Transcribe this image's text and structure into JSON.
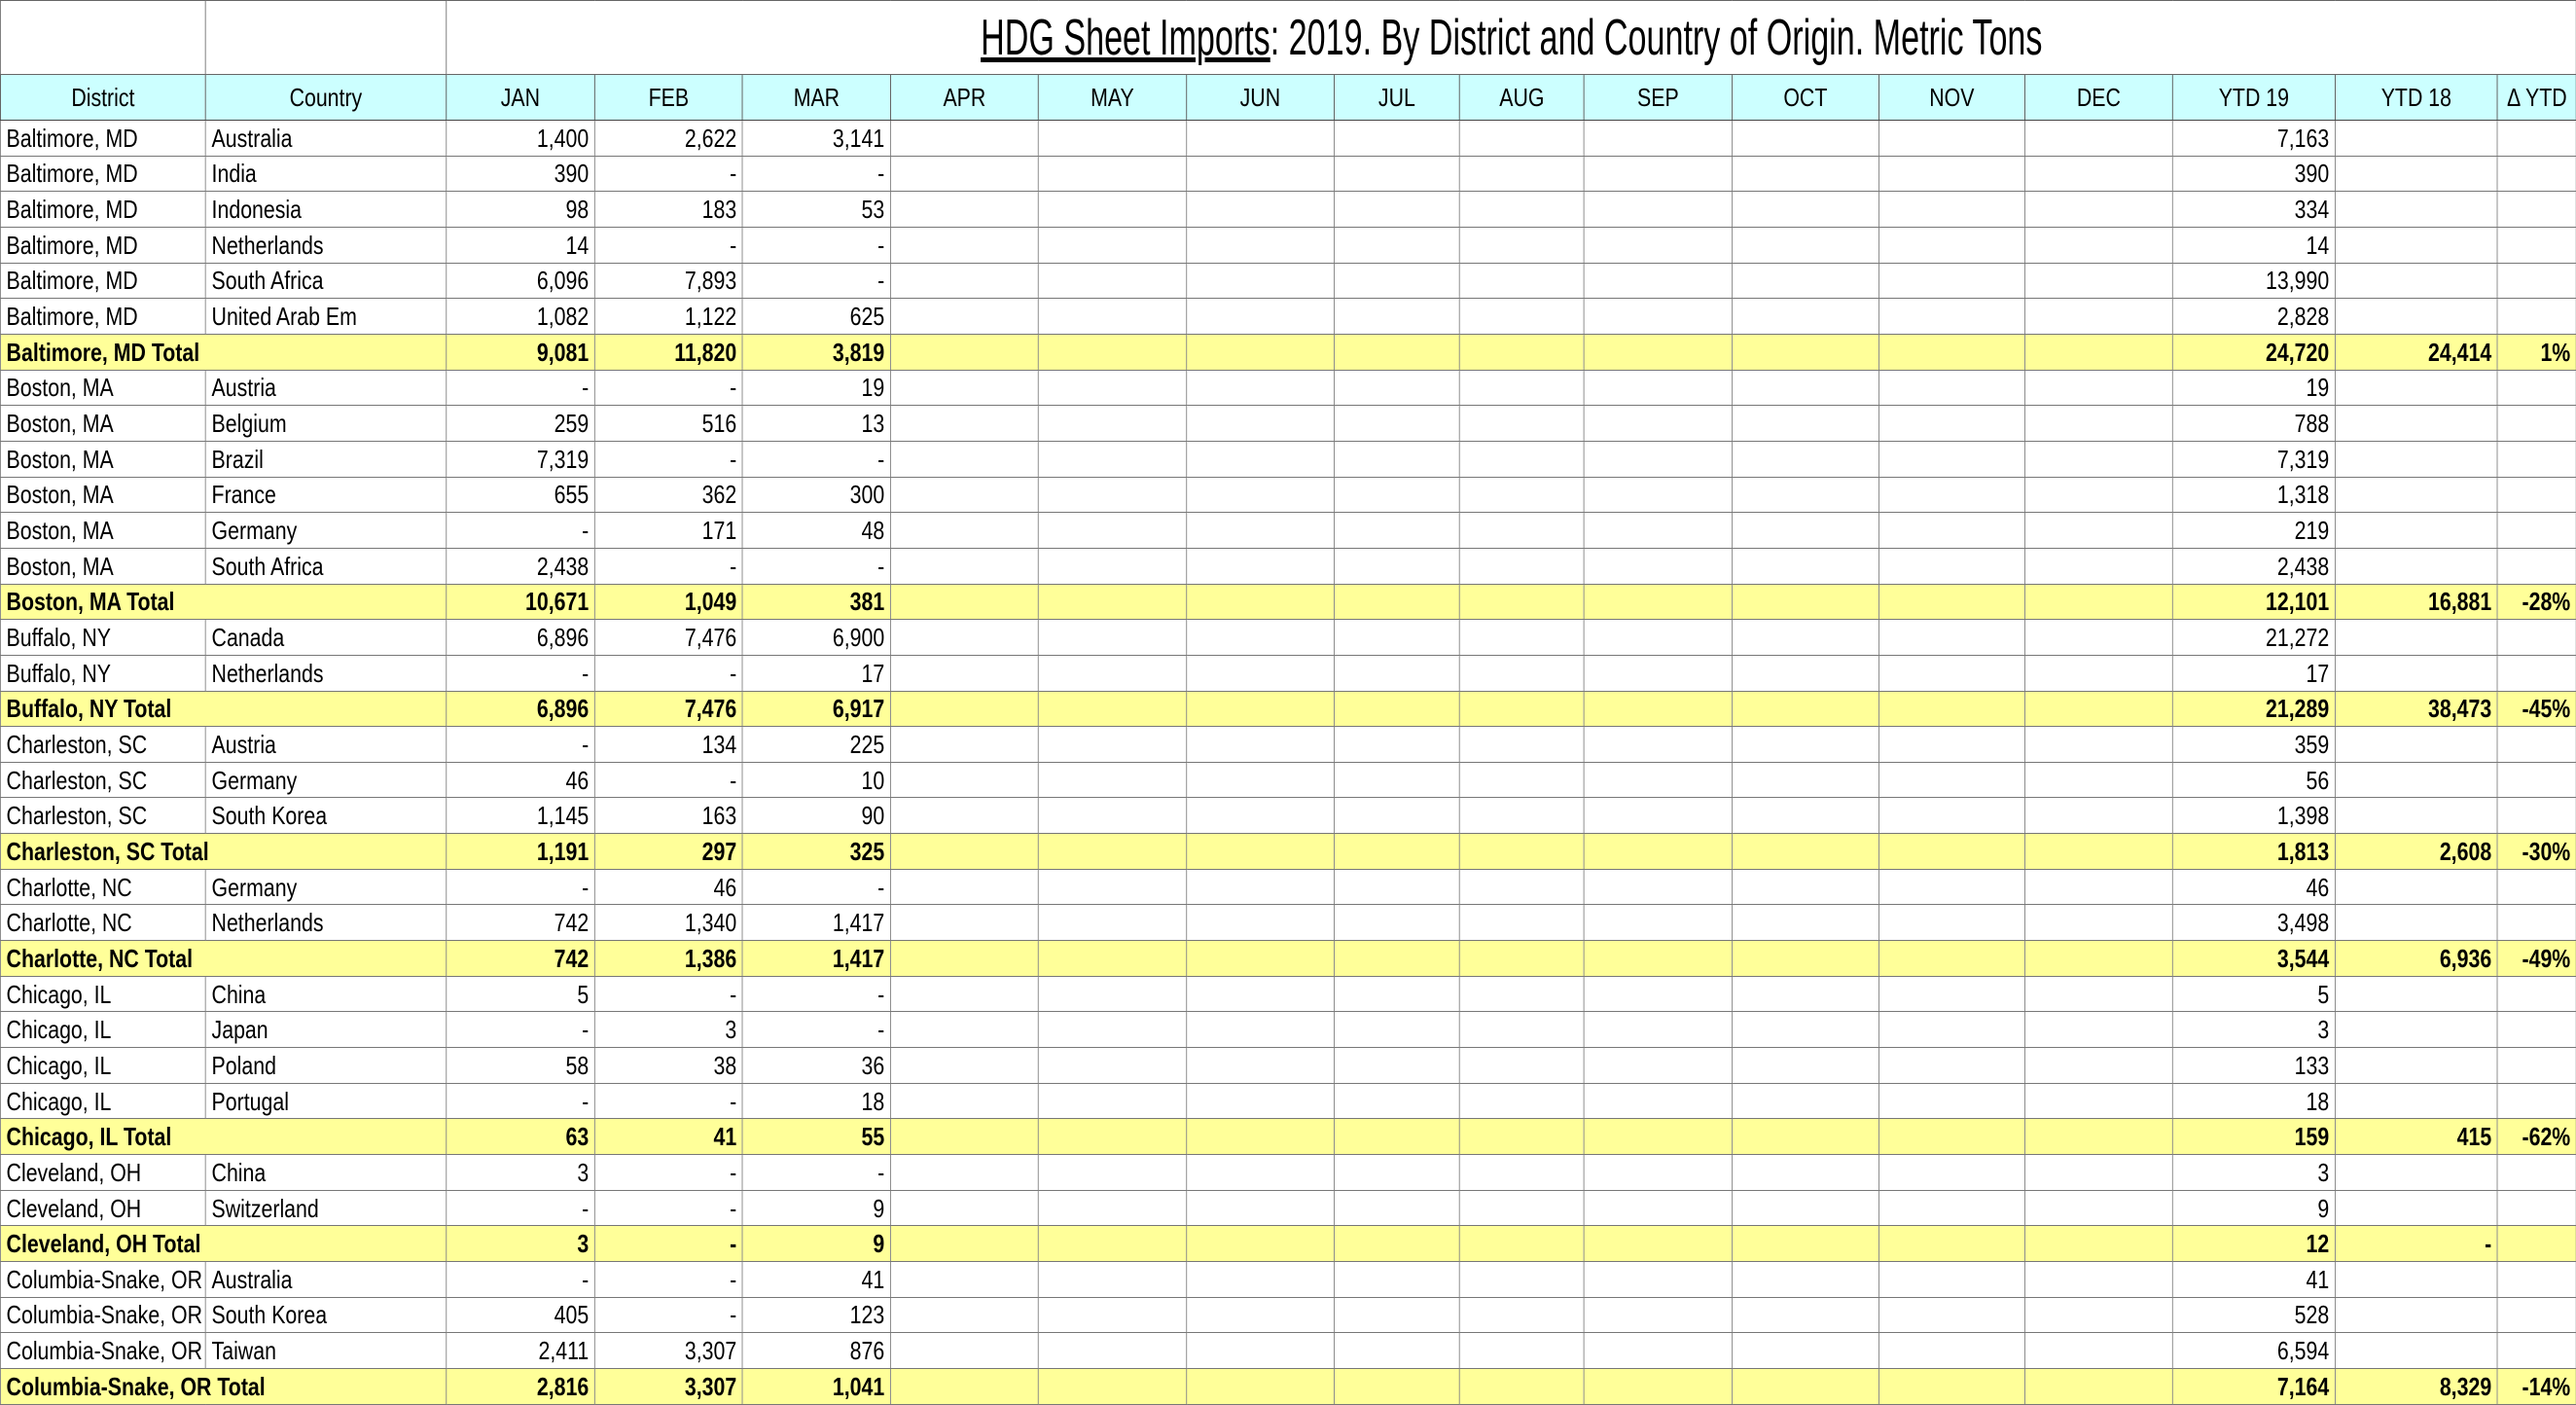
{
  "title": {
    "underlined": "HDG Sheet Imports",
    "rest": ": 2019. By District and Country of Origin. Metric Tons"
  },
  "table": {
    "columns": [
      "District",
      "Country",
      "JAN",
      "FEB",
      "MAR",
      "APR",
      "MAY",
      "JUN",
      "JUL",
      "AUG",
      "SEP",
      "OCT",
      "NOV",
      "DEC",
      "YTD 19",
      "YTD 18",
      "Δ YTD"
    ],
    "rows": [
      {
        "district": "Baltimore, MD",
        "country": "Australia",
        "months": [
          "1,400",
          "2,622",
          "3,141"
        ],
        "ytd19": "7,163"
      },
      {
        "district": "Baltimore, MD",
        "country": "India",
        "months": [
          "390",
          "-",
          "-"
        ],
        "ytd19": "390"
      },
      {
        "district": "Baltimore, MD",
        "country": "Indonesia",
        "months": [
          "98",
          "183",
          "53"
        ],
        "ytd19": "334"
      },
      {
        "district": "Baltimore, MD",
        "country": "Netherlands",
        "months": [
          "14",
          "-",
          "-"
        ],
        "ytd19": "14"
      },
      {
        "district": "Baltimore, MD",
        "country": "South Africa",
        "months": [
          "6,096",
          "7,893",
          "-"
        ],
        "ytd19": "13,990"
      },
      {
        "district": "Baltimore, MD",
        "country": "United Arab Em",
        "months": [
          "1,082",
          "1,122",
          "625"
        ],
        "ytd19": "2,828"
      },
      {
        "total": true,
        "district": "Baltimore, MD Total",
        "months": [
          "9,081",
          "11,820",
          "3,819"
        ],
        "ytd19": "24,720",
        "ytd18": "24,414",
        "change": "1%"
      },
      {
        "district": "Boston, MA",
        "country": "Austria",
        "months": [
          "-",
          "-",
          "19"
        ],
        "ytd19": "19"
      },
      {
        "district": "Boston, MA",
        "country": "Belgium",
        "months": [
          "259",
          "516",
          "13"
        ],
        "ytd19": "788"
      },
      {
        "district": "Boston, MA",
        "country": "Brazil",
        "months": [
          "7,319",
          "-",
          "-"
        ],
        "ytd19": "7,319"
      },
      {
        "district": "Boston, MA",
        "country": "France",
        "months": [
          "655",
          "362",
          "300"
        ],
        "ytd19": "1,318"
      },
      {
        "district": "Boston, MA",
        "country": "Germany",
        "months": [
          "-",
          "171",
          "48"
        ],
        "ytd19": "219"
      },
      {
        "district": "Boston, MA",
        "country": "South Africa",
        "months": [
          "2,438",
          "-",
          "-"
        ],
        "ytd19": "2,438"
      },
      {
        "total": true,
        "district": "Boston, MA Total",
        "months": [
          "10,671",
          "1,049",
          "381"
        ],
        "ytd19": "12,101",
        "ytd18": "16,881",
        "change": "-28%"
      },
      {
        "district": "Buffalo, NY",
        "country": "Canada",
        "months": [
          "6,896",
          "7,476",
          "6,900"
        ],
        "ytd19": "21,272"
      },
      {
        "district": "Buffalo, NY",
        "country": "Netherlands",
        "months": [
          "-",
          "-",
          "17"
        ],
        "ytd19": "17"
      },
      {
        "total": true,
        "district": "Buffalo, NY Total",
        "months": [
          "6,896",
          "7,476",
          "6,917"
        ],
        "ytd19": "21,289",
        "ytd18": "38,473",
        "change": "-45%"
      },
      {
        "district": "Charleston, SC",
        "country": "Austria",
        "months": [
          "-",
          "134",
          "225"
        ],
        "ytd19": "359"
      },
      {
        "district": "Charleston, SC",
        "country": "Germany",
        "months": [
          "46",
          "-",
          "10"
        ],
        "ytd19": "56"
      },
      {
        "district": "Charleston, SC",
        "country": "South Korea",
        "months": [
          "1,145",
          "163",
          "90"
        ],
        "ytd19": "1,398"
      },
      {
        "total": true,
        "district": "Charleston, SC Total",
        "months": [
          "1,191",
          "297",
          "325"
        ],
        "ytd19": "1,813",
        "ytd18": "2,608",
        "change": "-30%"
      },
      {
        "district": "Charlotte, NC",
        "country": "Germany",
        "months": [
          "-",
          "46",
          "-"
        ],
        "ytd19": "46"
      },
      {
        "district": "Charlotte, NC",
        "country": "Netherlands",
        "months": [
          "742",
          "1,340",
          "1,417"
        ],
        "ytd19": "3,498"
      },
      {
        "total": true,
        "district": "Charlotte, NC Total",
        "months": [
          "742",
          "1,386",
          "1,417"
        ],
        "ytd19": "3,544",
        "ytd18": "6,936",
        "change": "-49%"
      },
      {
        "district": "Chicago, IL",
        "country": "China",
        "months": [
          "5",
          "-",
          "-"
        ],
        "ytd19": "5"
      },
      {
        "district": "Chicago, IL",
        "country": "Japan",
        "months": [
          "-",
          "3",
          "-"
        ],
        "ytd19": "3"
      },
      {
        "district": "Chicago, IL",
        "country": "Poland",
        "months": [
          "58",
          "38",
          "36"
        ],
        "ytd19": "133"
      },
      {
        "district": "Chicago, IL",
        "country": "Portugal",
        "months": [
          "-",
          "-",
          "18"
        ],
        "ytd19": "18"
      },
      {
        "total": true,
        "district": "Chicago, IL Total",
        "months": [
          "63",
          "41",
          "55"
        ],
        "ytd19": "159",
        "ytd18": "415",
        "change": "-62%"
      },
      {
        "district": "Cleveland, OH",
        "country": "China",
        "months": [
          "3",
          "-",
          "-"
        ],
        "ytd19": "3"
      },
      {
        "district": "Cleveland, OH",
        "country": "Switzerland",
        "months": [
          "-",
          "-",
          "9"
        ],
        "ytd19": "9"
      },
      {
        "total": true,
        "district": "Cleveland, OH Total",
        "months": [
          "3",
          "-",
          "9"
        ],
        "ytd19": "12",
        "ytd18": "-"
      },
      {
        "district": "Columbia-Snake, OR",
        "country": "Australia",
        "months": [
          "-",
          "-",
          "41"
        ],
        "ytd19": "41"
      },
      {
        "district": "Columbia-Snake, OR",
        "country": "South Korea",
        "months": [
          "405",
          "-",
          "123"
        ],
        "ytd19": "528"
      },
      {
        "district": "Columbia-Snake, OR",
        "country": "Taiwan",
        "months": [
          "2,411",
          "3,307",
          "876"
        ],
        "ytd19": "6,594"
      },
      {
        "total": true,
        "district": "Columbia-Snake, OR Total",
        "months": [
          "2,816",
          "3,307",
          "1,041"
        ],
        "ytd19": "7,164",
        "ytd18": "8,329",
        "change": "-14%"
      }
    ]
  }
}
